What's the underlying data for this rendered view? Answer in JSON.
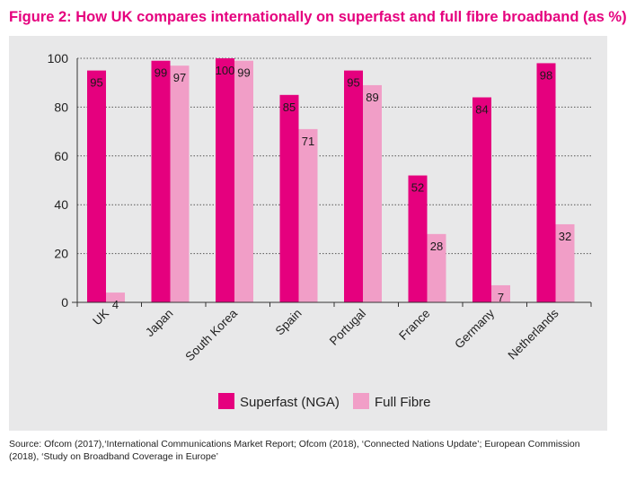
{
  "figure": {
    "title": "Figure 2:  How UK compares internationally on superfast and full fibre broadband (as %)",
    "source_line1": "Source: Ofcom (2017),‘International Communications Market Report; Ofcom (2018), ‘Connected Nations Update’; European Commission",
    "source_line2": "(2018), ‘Study on Broadband Coverage in Europe’"
  },
  "colors": {
    "superfast": "#e5007e",
    "full_fibre": "#f19ec7",
    "panel": "#e8e8e9",
    "title": "#e5007e"
  },
  "chart_data": {
    "type": "bar",
    "title": "Figure 2:  How UK compares internationally on superfast and full fibre broadband (as %)",
    "categories": [
      "UK",
      "Japan",
      "South Korea",
      "Spain",
      "Portugal",
      "France",
      "Germany",
      "Netherlands"
    ],
    "series": [
      {
        "name": "Superfast (NGA)",
        "values": [
          95,
          99,
          100,
          85,
          95,
          52,
          84,
          98
        ]
      },
      {
        "name": "Full Fibre",
        "values": [
          4,
          97,
          99,
          71,
          89,
          28,
          7,
          32
        ]
      }
    ],
    "ylim": [
      0,
      100
    ],
    "yticks": [
      0,
      20,
      40,
      60,
      80,
      100
    ],
    "grid": true,
    "legend_position": "bottom",
    "xlabel": "",
    "ylabel": ""
  }
}
